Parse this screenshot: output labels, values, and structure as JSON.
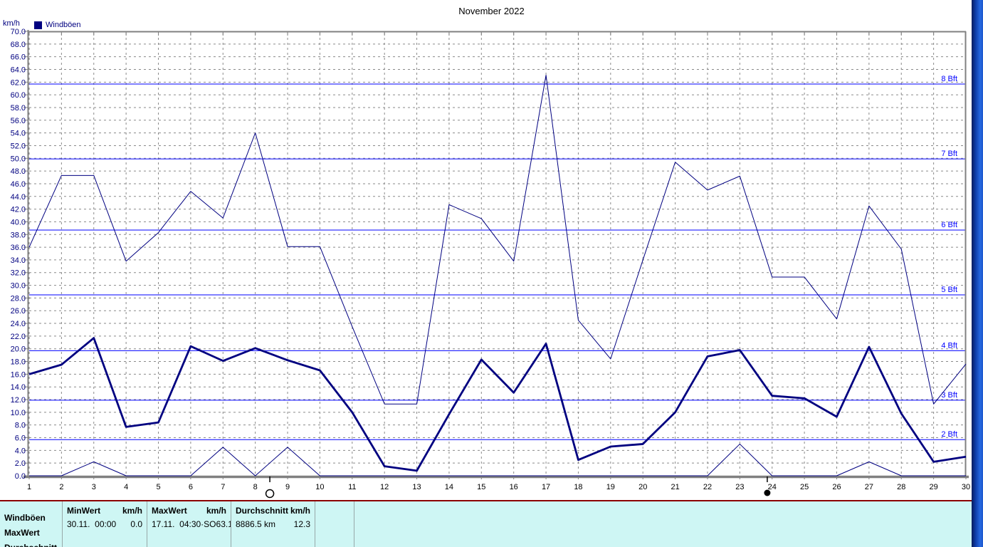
{
  "title": "November 2022",
  "legend": {
    "label": "Windböen",
    "swatch_color": "#000080"
  },
  "y_axis": {
    "unit": "km/h",
    "min": 0,
    "max": 70,
    "step": 2,
    "tick_labels": [
      "0.0",
      "2.0",
      "4.0",
      "6.0",
      "8.0",
      "10.0",
      "12.0",
      "14.0",
      "16.0",
      "18.0",
      "20.0",
      "22.0",
      "24.0",
      "26.0",
      "28.0",
      "30.0",
      "32.0",
      "34.0",
      "36.0",
      "38.0",
      "40.0",
      "42.0",
      "44.0",
      "46.0",
      "48.0",
      "50.0",
      "52.0",
      "54.0",
      "56.0",
      "58.0",
      "60.0",
      "62.0",
      "64.0",
      "66.0",
      "68.0",
      "70.0"
    ]
  },
  "x_axis": {
    "tick_labels": [
      "1",
      "2",
      "3",
      "4",
      "5",
      "6",
      "7",
      "8",
      "9",
      "10",
      "11",
      "12",
      "13",
      "14",
      "15",
      "16",
      "17",
      "18",
      "19",
      "20",
      "21",
      "22",
      "23",
      "24",
      "25",
      "26",
      "27",
      "28",
      "29",
      "30"
    ]
  },
  "beaufort_lines": [
    {
      "label": "2 Bft",
      "kmh": 5.7
    },
    {
      "label": "3 Bft",
      "kmh": 11.9
    },
    {
      "label": "4 Bft",
      "kmh": 19.7
    },
    {
      "label": "5 Bft",
      "kmh": 28.5
    },
    {
      "label": "6 Bft",
      "kmh": 38.7
    },
    {
      "label": "7 Bft",
      "kmh": 49.9
    },
    {
      "label": "8 Bft",
      "kmh": 61.7
    }
  ],
  "moon_markers": [
    {
      "symbol": "full-moon-circle",
      "day": 8.45
    },
    {
      "symbol": "new-moon-circle",
      "day": 23.85
    }
  ],
  "chart_data": {
    "type": "line",
    "title": "November 2022",
    "ylabel": "km/h",
    "ylim": [
      0,
      70
    ],
    "grid": true,
    "legend_position": "top-left",
    "x": [
      1,
      2,
      3,
      4,
      5,
      6,
      7,
      8,
      9,
      10,
      11,
      12,
      13,
      14,
      15,
      16,
      17,
      18,
      19,
      20,
      21,
      22,
      23,
      24,
      25,
      26,
      27,
      28,
      29,
      30
    ],
    "series": [
      {
        "name": "MaxWert",
        "line": "thin",
        "values": [
          36.0,
          47.3,
          47.3,
          33.8,
          38.3,
          44.8,
          40.6,
          54.0,
          36.1,
          36.1,
          23.5,
          11.3,
          11.3,
          42.7,
          40.5,
          33.8,
          63.1,
          24.5,
          18.4,
          34.0,
          49.4,
          45.0,
          47.2,
          31.3,
          31.3,
          24.7,
          42.5,
          35.7,
          11.3,
          17.6
        ]
      },
      {
        "name": "Windböen",
        "line": "thick",
        "values": [
          16.0,
          17.5,
          21.7,
          7.7,
          8.4,
          20.4,
          18.1,
          20.1,
          18.2,
          16.6,
          10.0,
          1.5,
          0.8,
          9.7,
          18.3,
          13.1,
          20.8,
          2.5,
          4.6,
          5.0,
          10.0,
          18.8,
          19.8,
          12.6,
          12.2,
          9.3,
          20.3,
          9.8,
          2.2,
          3.0
        ]
      },
      {
        "name": "MinWert",
        "line": "thin",
        "values": [
          0,
          0,
          2.2,
          0,
          0,
          0,
          4.5,
          0,
          4.5,
          0,
          0,
          0,
          0,
          0,
          0,
          0,
          0,
          0,
          0,
          0,
          0,
          0,
          5.0,
          0,
          0,
          0,
          2.2,
          0,
          0,
          0
        ]
      }
    ]
  },
  "table": {
    "row_labels": [
      "Windböen",
      "MaxWert",
      "Durchschnitt"
    ],
    "columns": [
      {
        "title": "MinWert",
        "unit": "km/h",
        "value": "30.11.  00:00",
        "number": "0.0"
      },
      {
        "title": "MaxWert",
        "unit": "km/h",
        "value": "17.11.  04:30·SO",
        "number": "63.1"
      },
      {
        "title": "Durchschnitt",
        "unit": "km/h",
        "value": "8886.5 km",
        "number": "12.3"
      }
    ]
  },
  "colors": {
    "series": "#000080",
    "beaufort": "#0000ff",
    "grid": "#8a8a8a",
    "axis": "#808080",
    "table_bg": "#cef6f4",
    "table_top_border": "#8b0000",
    "edge_strip": [
      "#081c5e",
      "#0f3da8",
      "#2668e0",
      "#1d57cc"
    ]
  }
}
